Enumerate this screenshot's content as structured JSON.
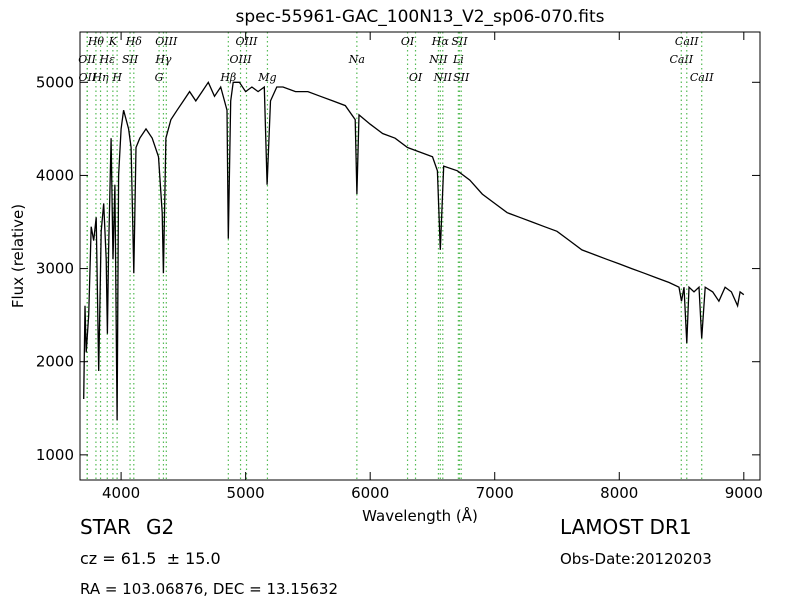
{
  "chart_data": {
    "type": "line",
    "title": "spec-55961-GAC_100N13_V2_sp06-070.fits",
    "xlabel": "Wavelength (Å)",
    "ylabel": "Flux (relative)",
    "color": "#000000",
    "line_color": "#55bb55",
    "xlim": [
      3670,
      9130
    ],
    "ylim": [
      730,
      5540
    ],
    "xticks": [
      4000,
      5000,
      6000,
      7000,
      8000,
      9000
    ],
    "yticks": [
      1000,
      2000,
      3000,
      4000,
      5000
    ],
    "x": [
      3700,
      3710,
      3720,
      3740,
      3760,
      3780,
      3800,
      3820,
      3840,
      3860,
      3880,
      3890,
      3900,
      3920,
      3935,
      3950,
      3968,
      3980,
      4000,
      4020,
      4040,
      4060,
      4080,
      4102,
      4120,
      4150,
      4200,
      4250,
      4300,
      4330,
      4340,
      4360,
      4400,
      4450,
      4500,
      4550,
      4600,
      4650,
      4700,
      4750,
      4800,
      4850,
      4861,
      4880,
      4900,
      4950,
      5000,
      5050,
      5100,
      5150,
      5172,
      5200,
      5250,
      5300,
      5400,
      5500,
      5600,
      5700,
      5800,
      5880,
      5893,
      5910,
      6000,
      6100,
      6200,
      6300,
      6400,
      6500,
      6540,
      6563,
      6590,
      6700,
      6800,
      6900,
      7000,
      7100,
      7200,
      7300,
      7400,
      7500,
      7600,
      7700,
      7800,
      7900,
      8000,
      8100,
      8200,
      8300,
      8400,
      8480,
      8500,
      8520,
      8542,
      8560,
      8600,
      8640,
      8662,
      8690,
      8750,
      8800,
      8850,
      8900,
      8950,
      8970,
      9000
    ],
    "values": [
      1600,
      2600,
      2100,
      2500,
      3450,
      3300,
      3550,
      1900,
      3400,
      3700,
      3100,
      2300,
      3200,
      4400,
      3100,
      3900,
      1370,
      4000,
      4500,
      4700,
      4600,
      4500,
      4300,
      2950,
      4300,
      4400,
      4500,
      4400,
      4200,
      3600,
      2950,
      4400,
      4600,
      4700,
      4800,
      4900,
      4800,
      4900,
      5000,
      4850,
      4950,
      4700,
      3320,
      4800,
      5000,
      5000,
      4900,
      4950,
      4900,
      4950,
      3900,
      4800,
      4950,
      4950,
      4900,
      4900,
      4850,
      4800,
      4750,
      4600,
      3800,
      4650,
      4550,
      4450,
      4400,
      4300,
      4250,
      4200,
      4050,
      3200,
      4100,
      4050,
      3950,
      3800,
      3700,
      3600,
      3550,
      3500,
      3450,
      3400,
      3300,
      3200,
      3150,
      3100,
      3050,
      3000,
      2950,
      2900,
      2850,
      2800,
      2650,
      2800,
      2200,
      2800,
      2750,
      2800,
      2250,
      2800,
      2750,
      2650,
      2800,
      2750,
      2600,
      2750,
      2720
    ],
    "lines": [
      {
        "label": "OII",
        "x": 3727
      },
      {
        "label": "OII",
        "x": 3729
      },
      {
        "label": "Hθ",
        "x": 3798
      },
      {
        "label": "Hη",
        "x": 3835
      },
      {
        "label": "Hε",
        "x": 3889
      },
      {
        "label": "K",
        "x": 3934
      },
      {
        "label": "H",
        "x": 3968
      },
      {
        "label": "SII",
        "x": 4072
      },
      {
        "label": "Hδ",
        "x": 4102
      },
      {
        "label": "G",
        "x": 4305
      },
      {
        "label": "Hγ",
        "x": 4340
      },
      {
        "label": "OIII",
        "x": 4363
      },
      {
        "label": "Hβ",
        "x": 4861
      },
      {
        "label": "OIII",
        "x": 4959
      },
      {
        "label": "OIII",
        "x": 5007
      },
      {
        "label": "Mg",
        "x": 5175
      },
      {
        "label": "Na",
        "x": 5893
      },
      {
        "label": "OI",
        "x": 6300
      },
      {
        "label": "OI",
        "x": 6364
      },
      {
        "label": "NII",
        "x": 6548
      },
      {
        "label": "Hα",
        "x": 6563
      },
      {
        "label": "NII",
        "x": 6583
      },
      {
        "label": "Li",
        "x": 6708
      },
      {
        "label": "SII",
        "x": 6717
      },
      {
        "label": "SII",
        "x": 6731
      },
      {
        "label": "CaII",
        "x": 8498
      },
      {
        "label": "CaII",
        "x": 8542
      },
      {
        "label": "CaII",
        "x": 8662
      }
    ],
    "object_class": "STAR",
    "subclass": "G2",
    "redshift": "cz = 61.5  ± 15.0",
    "coordinates": "RA = 103.06876, DEC = 13.15632",
    "survey": "LAMOST DR1",
    "obs_date": "Obs-Date:20120203"
  }
}
